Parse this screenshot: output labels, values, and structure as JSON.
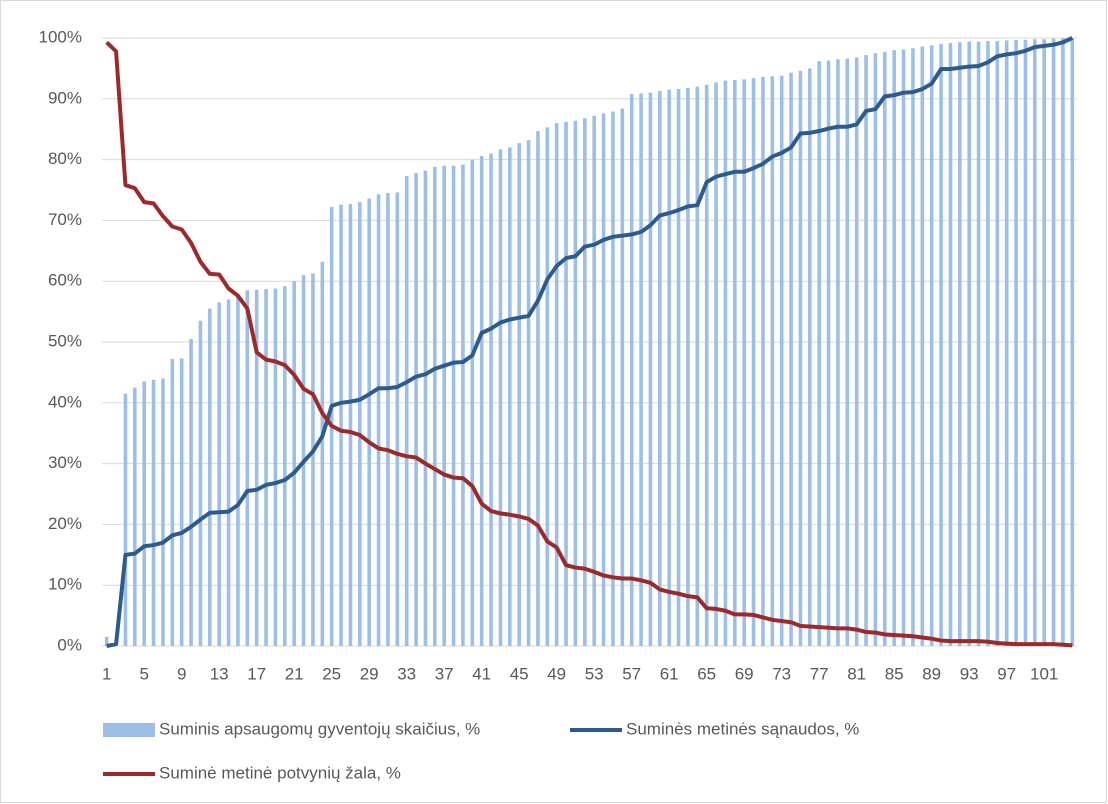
{
  "chart_data": {
    "type": "combo",
    "categories": [
      1,
      null,
      null,
      null,
      5,
      null,
      null,
      null,
      9,
      null,
      null,
      null,
      13,
      null,
      null,
      null,
      17,
      null,
      null,
      null,
      21,
      null,
      null,
      null,
      25,
      null,
      null,
      null,
      29,
      null,
      null,
      null,
      33,
      null,
      null,
      null,
      37,
      null,
      null,
      null,
      41,
      null,
      null,
      null,
      45,
      null,
      null,
      null,
      49,
      null,
      null,
      null,
      53,
      null,
      null,
      null,
      57,
      null,
      null,
      null,
      61,
      null,
      null,
      null,
      65,
      null,
      null,
      null,
      69,
      null,
      null,
      null,
      73,
      null,
      null,
      null,
      77,
      null,
      null,
      null,
      81,
      null,
      null,
      null,
      85,
      null,
      null,
      null,
      89,
      null,
      null,
      null,
      93,
      null,
      null,
      null,
      97,
      null,
      null,
      null,
      101,
      null,
      null,
      null
    ],
    "ylim": [
      0,
      100
    ],
    "yticks": [
      {
        "value": 0,
        "label": "0%"
      },
      {
        "value": 10,
        "label": "10%"
      },
      {
        "value": 20,
        "label": "20%"
      },
      {
        "value": 30,
        "label": "30%"
      },
      {
        "value": 40,
        "label": "40%"
      },
      {
        "value": 50,
        "label": "50%"
      },
      {
        "value": 60,
        "label": "60%"
      },
      {
        "value": 70,
        "label": "70%"
      },
      {
        "value": 80,
        "label": "80%"
      },
      {
        "value": 90,
        "label": "90%"
      },
      {
        "value": 100,
        "label": "100%"
      }
    ],
    "grid": true,
    "legend": "bottom",
    "series": [
      {
        "name": "Suminis apsaugomų gyventojų skaičius, %",
        "type": "bar",
        "color": "#9dbfe6",
        "values": [
          1.5,
          0,
          41.5,
          42.5,
          43.5,
          43.8,
          44,
          47.2,
          47.3,
          50.5,
          53.5,
          55.5,
          56.5,
          57,
          57.5,
          58.5,
          58.6,
          58.7,
          58.8,
          59.2,
          60,
          61,
          61.3,
          63.2,
          72.2,
          72.6,
          72.7,
          73,
          73.6,
          74.3,
          74.5,
          74.6,
          77.3,
          77.8,
          78.2,
          78.8,
          79,
          79,
          79.2,
          80,
          80.6,
          81,
          81.7,
          82,
          82.7,
          83.2,
          84.7,
          85.3,
          86,
          86.2,
          86.4,
          86.8,
          87.2,
          87.6,
          87.9,
          88.4,
          90.8,
          90.9,
          91,
          91.3,
          91.5,
          91.6,
          91.8,
          92,
          92.3,
          92.7,
          93,
          93.1,
          93.2,
          93.4,
          93.6,
          93.7,
          93.8,
          94.3,
          94.6,
          95,
          96.2,
          96.3,
          96.5,
          96.6,
          96.8,
          97.2,
          97.5,
          97.7,
          98,
          98.1,
          98.3,
          98.6,
          98.8,
          99,
          99.2,
          99.3,
          99.4,
          99.4,
          99.5,
          99.5,
          99.6,
          99.7,
          99.7,
          99.8,
          99.8,
          99.9,
          99.95,
          100
        ]
      },
      {
        "name": "Suminės metinės sąnaudos, %",
        "type": "line",
        "color": "#2e5b8e",
        "values": [
          0,
          0.3,
          15,
          15.2,
          16.4,
          16.6,
          17,
          18.2,
          18.6,
          19.6,
          20.8,
          21.9,
          22,
          22.1,
          23.2,
          25.5,
          25.7,
          26.5,
          26.8,
          27.3,
          28.5,
          30.3,
          32,
          34.5,
          39.5,
          40,
          40.2,
          40.5,
          41.4,
          42.4,
          42.4,
          42.6,
          43.4,
          44.3,
          44.7,
          45.6,
          46.1,
          46.6,
          46.7,
          47.8,
          51.5,
          52.2,
          53.2,
          53.7,
          54,
          54.3,
          56.8,
          60.3,
          62.5,
          63.8,
          64.1,
          65.7,
          66,
          66.8,
          67.3,
          67.5,
          67.7,
          68.1,
          69.2,
          70.8,
          71.2,
          71.7,
          72.3,
          72.5,
          76.3,
          77.2,
          77.6,
          78,
          78,
          78.6,
          79.3,
          80.5,
          81.1,
          82,
          84.3,
          84.4,
          84.7,
          85.1,
          85.4,
          85.4,
          85.8,
          88,
          88.3,
          90.4,
          90.6,
          91,
          91.1,
          91.6,
          92.5,
          94.9,
          94.9,
          95.1,
          95.3,
          95.4,
          96,
          97,
          97.3,
          97.5,
          97.9,
          98.5,
          98.7,
          98.9,
          99.3,
          100
        ]
      },
      {
        "name": "Suminė metinė potvynių žala, %",
        "type": "line",
        "color": "#9b2b2b",
        "values": [
          99.3,
          97.8,
          75.8,
          75.3,
          73,
          72.8,
          70.7,
          69,
          68.5,
          66.3,
          63.2,
          61.2,
          61.1,
          58.8,
          57.6,
          55.5,
          48.3,
          47.1,
          46.8,
          46.2,
          44.6,
          42.3,
          41.4,
          38.3,
          36.2,
          35.4,
          35.2,
          34.7,
          33.5,
          32.5,
          32.2,
          31.6,
          31.2,
          31,
          30,
          29.1,
          28.2,
          27.7,
          27.6,
          26.3,
          23.4,
          22.2,
          21.8,
          21.6,
          21.3,
          20.9,
          19.8,
          17.2,
          16.2,
          13.3,
          12.9,
          12.7,
          12.2,
          11.6,
          11.3,
          11.1,
          11.1,
          10.8,
          10.4,
          9.3,
          8.9,
          8.6,
          8.2,
          8,
          6.2,
          6.1,
          5.8,
          5.2,
          5.2,
          5.1,
          4.7,
          4.3,
          4.1,
          3.9,
          3.3,
          3.2,
          3.1,
          3,
          2.9,
          2.9,
          2.7,
          2.3,
          2.2,
          1.9,
          1.8,
          1.7,
          1.6,
          1.4,
          1.2,
          0.9,
          0.8,
          0.8,
          0.8,
          0.8,
          0.7,
          0.5,
          0.4,
          0.3,
          0.3,
          0.3,
          0.3,
          0.3,
          0.2,
          0.1
        ]
      }
    ]
  }
}
